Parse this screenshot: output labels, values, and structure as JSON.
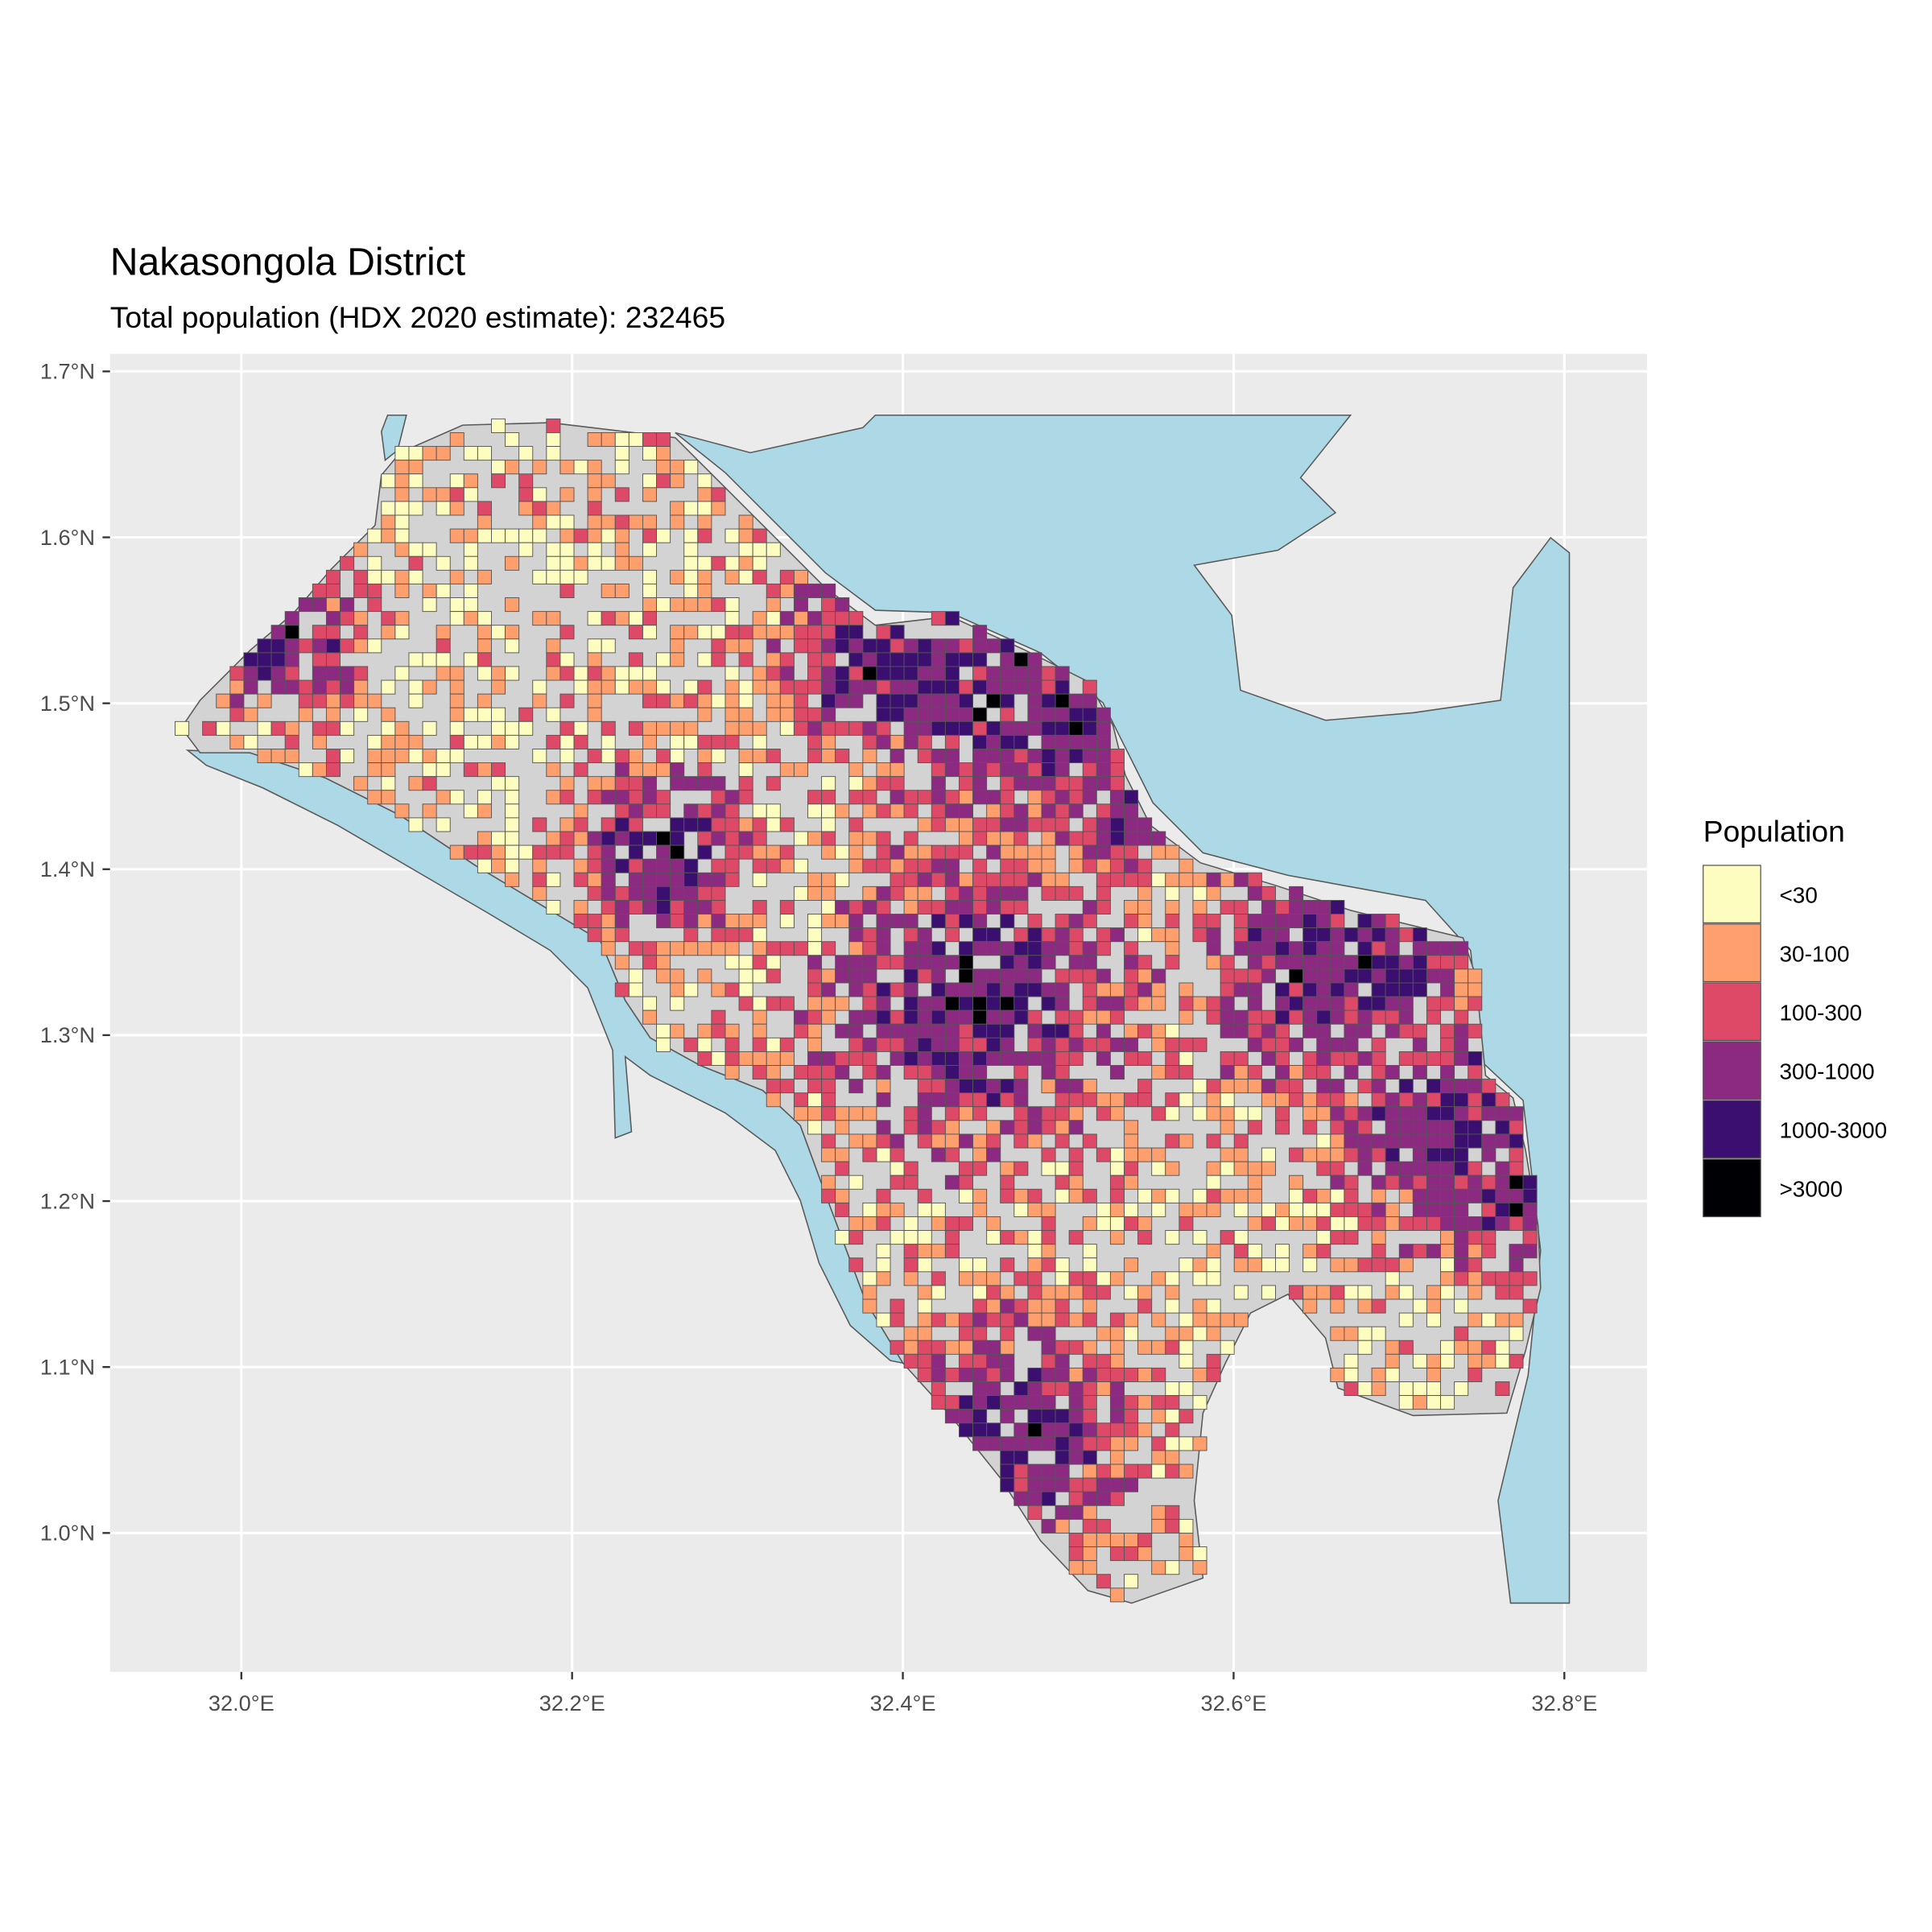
{
  "chart_data": {
    "type": "map",
    "title": "Nakasongola District",
    "subtitle": "Total population (HDX 2020 estimate): 232465",
    "x_ticks": [
      {
        "value": 32.0,
        "label": "32.0°E"
      },
      {
        "value": 32.2,
        "label": "32.2°E"
      },
      {
        "value": 32.4,
        "label": "32.4°E"
      },
      {
        "value": 32.6,
        "label": "32.6°E"
      },
      {
        "value": 32.8,
        "label": "32.8°E"
      }
    ],
    "y_ticks": [
      {
        "value": 1.7,
        "label": "1.7°N"
      },
      {
        "value": 1.6,
        "label": "1.6°N"
      },
      {
        "value": 1.5,
        "label": "1.5°N"
      },
      {
        "value": 1.4,
        "label": "1.4°N"
      },
      {
        "value": 1.3,
        "label": "1.3°N"
      },
      {
        "value": 1.2,
        "label": "1.2°N"
      },
      {
        "value": 1.1,
        "label": "1.1°N"
      },
      {
        "value": 1.0,
        "label": "1.0°N"
      }
    ],
    "legend": {
      "title": "Population",
      "placement": "right",
      "items": [
        {
          "label": "<30",
          "color": "#FCFDBF"
        },
        {
          "label": "30-100",
          "color": "#FE9F6D"
        },
        {
          "label": "100-300",
          "color": "#DE4968"
        },
        {
          "label": "300-1000",
          "color": "#8C2981"
        },
        {
          "label": "1000-3000",
          "color": "#3B0F70"
        },
        {
          "label": ">3000",
          "color": "#000004"
        }
      ]
    },
    "colors": {
      "water": "#ADD8E6",
      "land": "#D3D3D3",
      "panel": "#EBEBEB",
      "border": "#595959"
    }
  }
}
